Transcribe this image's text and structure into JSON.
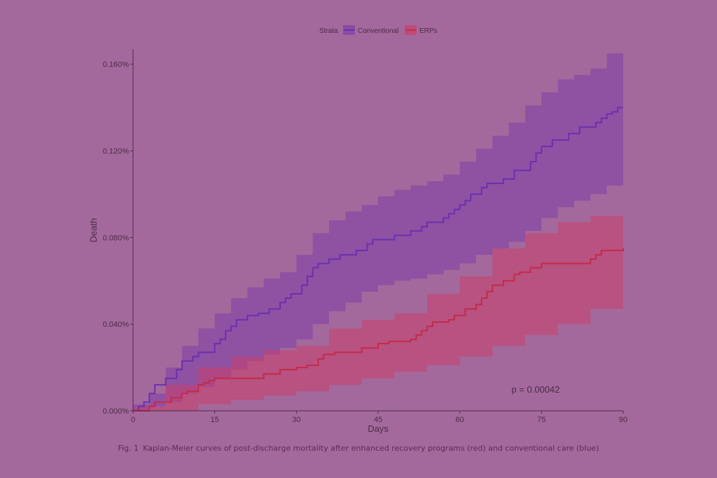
{
  "chart_data": {
    "type": "line",
    "xlabel": "Days",
    "ylabel": "Death",
    "xlim": [
      0,
      90
    ],
    "ylim": [
      0,
      0.00167
    ],
    "x_ticks": [
      0,
      15,
      30,
      45,
      60,
      75,
      90
    ],
    "y_ticks": [
      0.0,
      0.0004,
      0.0008,
      0.0012,
      0.0016
    ],
    "y_tick_labels": [
      "0.000%",
      "0.040%",
      "0.080%",
      "0.120%",
      "0.160%"
    ],
    "grid": false,
    "legend_title": "Strata",
    "legend_position": "top",
    "annotation": "p = 0.00042",
    "series": [
      {
        "name": "Conventional",
        "color": "#6a30b0",
        "band_color": "#7d3ea8",
        "steps": [
          [
            0,
            0.0
          ],
          [
            1,
            2e-05
          ],
          [
            2,
            4e-05
          ],
          [
            3,
            8e-05
          ],
          [
            4,
            0.00012
          ],
          [
            6,
            0.00015
          ],
          [
            8,
            0.00019
          ],
          [
            9,
            0.00023
          ],
          [
            11,
            0.00025
          ],
          [
            12,
            0.00027
          ],
          [
            15,
            0.00031
          ],
          [
            16,
            0.00033
          ],
          [
            17,
            0.00037
          ],
          [
            18,
            0.00039
          ],
          [
            19,
            0.00042
          ],
          [
            21,
            0.00044
          ],
          [
            23,
            0.00045
          ],
          [
            25,
            0.00047
          ],
          [
            27,
            0.0005
          ],
          [
            28,
            0.00052
          ],
          [
            29,
            0.00054
          ],
          [
            31,
            0.00058
          ],
          [
            32,
            0.00062
          ],
          [
            33,
            0.00066
          ],
          [
            34,
            0.00068
          ],
          [
            36,
            0.0007
          ],
          [
            38,
            0.00072
          ],
          [
            41,
            0.00074
          ],
          [
            43,
            0.00077
          ],
          [
            44,
            0.00079
          ],
          [
            48,
            0.00081
          ],
          [
            51,
            0.00083
          ],
          [
            53,
            0.00085
          ],
          [
            54,
            0.00087
          ],
          [
            57,
            0.00089
          ],
          [
            58,
            0.00091
          ],
          [
            59,
            0.00093
          ],
          [
            60,
            0.00095
          ],
          [
            61,
            0.00097
          ],
          [
            62,
            0.001
          ],
          [
            64,
            0.00103
          ],
          [
            65,
            0.00105
          ],
          [
            68,
            0.00107
          ],
          [
            70,
            0.00111
          ],
          [
            73,
            0.00115
          ],
          [
            74,
            0.00119
          ],
          [
            75,
            0.00122
          ],
          [
            77,
            0.00125
          ],
          [
            80,
            0.00128
          ],
          [
            82,
            0.00131
          ],
          [
            85,
            0.00133
          ],
          [
            86,
            0.00135
          ],
          [
            87,
            0.00137
          ],
          [
            88,
            0.00138
          ],
          [
            89,
            0.0014
          ],
          [
            90,
            0.0014
          ]
        ],
        "lower": [
          [
            0,
            0.0
          ],
          [
            3,
            2e-05
          ],
          [
            6,
            4e-05
          ],
          [
            9,
            8e-05
          ],
          [
            12,
            0.00011
          ],
          [
            15,
            0.00015
          ],
          [
            18,
            0.00019
          ],
          [
            21,
            0.00023
          ],
          [
            24,
            0.00026
          ],
          [
            27,
            0.00029
          ],
          [
            30,
            0.00033
          ],
          [
            33,
            0.0004
          ],
          [
            36,
            0.00046
          ],
          [
            39,
            0.0005
          ],
          [
            42,
            0.00055
          ],
          [
            45,
            0.00058
          ],
          [
            48,
            0.0006
          ],
          [
            51,
            0.00061
          ],
          [
            54,
            0.00063
          ],
          [
            57,
            0.00065
          ],
          [
            60,
            0.00068
          ],
          [
            63,
            0.00072
          ],
          [
            66,
            0.00075
          ],
          [
            69,
            0.00078
          ],
          [
            72,
            0.00083
          ],
          [
            75,
            0.00089
          ],
          [
            78,
            0.00094
          ],
          [
            81,
            0.00097
          ],
          [
            84,
            0.001
          ],
          [
            87,
            0.00104
          ],
          [
            90,
            0.00112
          ]
        ],
        "upper": [
          [
            0,
            3e-05
          ],
          [
            3,
            8e-05
          ],
          [
            6,
            0.0002
          ],
          [
            9,
            0.0003
          ],
          [
            12,
            0.00038
          ],
          [
            15,
            0.00045
          ],
          [
            18,
            0.00052
          ],
          [
            21,
            0.00057
          ],
          [
            24,
            0.00061
          ],
          [
            27,
            0.00064
          ],
          [
            30,
            0.00072
          ],
          [
            33,
            0.00082
          ],
          [
            36,
            0.00088
          ],
          [
            39,
            0.00092
          ],
          [
            42,
            0.00095
          ],
          [
            45,
            0.00099
          ],
          [
            48,
            0.00102
          ],
          [
            51,
            0.00104
          ],
          [
            54,
            0.00106
          ],
          [
            57,
            0.00109
          ],
          [
            60,
            0.00115
          ],
          [
            63,
            0.00121
          ],
          [
            66,
            0.00127
          ],
          [
            69,
            0.00133
          ],
          [
            72,
            0.00141
          ],
          [
            75,
            0.00147
          ],
          [
            78,
            0.00153
          ],
          [
            81,
            0.00155
          ],
          [
            84,
            0.00158
          ],
          [
            87,
            0.00165
          ],
          [
            90,
            0.00167
          ]
        ]
      },
      {
        "name": "ERPs",
        "color": "#c42a4a",
        "band_color": "#c8406a",
        "steps": [
          [
            0,
            0.0
          ],
          [
            3,
            2e-05
          ],
          [
            4,
            4e-05
          ],
          [
            7,
            6e-05
          ],
          [
            9,
            8e-05
          ],
          [
            10,
            9e-05
          ],
          [
            12,
            0.00012
          ],
          [
            13,
            0.00013
          ],
          [
            14,
            0.00014
          ],
          [
            15,
            0.00015
          ],
          [
            19,
            0.00015
          ],
          [
            24,
            0.00017
          ],
          [
            27,
            0.00019
          ],
          [
            30,
            0.0002
          ],
          [
            32,
            0.00021
          ],
          [
            34,
            0.00024
          ],
          [
            35,
            0.00026
          ],
          [
            37,
            0.00027
          ],
          [
            42,
            0.00029
          ],
          [
            45,
            0.00031
          ],
          [
            47,
            0.00032
          ],
          [
            51,
            0.00033
          ],
          [
            52,
            0.00035
          ],
          [
            53,
            0.00037
          ],
          [
            54,
            0.00039
          ],
          [
            55,
            0.00041
          ],
          [
            58,
            0.00042
          ],
          [
            59,
            0.00044
          ],
          [
            61,
            0.00047
          ],
          [
            63,
            0.00049
          ],
          [
            64,
            0.00052
          ],
          [
            65,
            0.00055
          ],
          [
            66,
            0.00058
          ],
          [
            68,
            0.0006
          ],
          [
            70,
            0.00063
          ],
          [
            71,
            0.00064
          ],
          [
            73,
            0.00066
          ],
          [
            75,
            0.00068
          ],
          [
            80,
            0.00068
          ],
          [
            84,
            0.0007
          ],
          [
            85,
            0.00072
          ],
          [
            86,
            0.00074
          ],
          [
            90,
            0.00075
          ]
        ],
        "lower": [
          [
            0,
            0.0
          ],
          [
            6,
            0.0
          ],
          [
            12,
            3e-05
          ],
          [
            18,
            5e-05
          ],
          [
            24,
            7e-05
          ],
          [
            30,
            9e-05
          ],
          [
            36,
            0.00012
          ],
          [
            42,
            0.00015
          ],
          [
            48,
            0.00018
          ],
          [
            54,
            0.00021
          ],
          [
            60,
            0.00025
          ],
          [
            66,
            0.0003
          ],
          [
            72,
            0.00035
          ],
          [
            78,
            0.0004
          ],
          [
            84,
            0.00047
          ],
          [
            90,
            0.00054
          ]
        ],
        "upper": [
          [
            0,
            2e-05
          ],
          [
            6,
            0.00012
          ],
          [
            12,
            0.0002
          ],
          [
            18,
            0.00025
          ],
          [
            24,
            0.00028
          ],
          [
            30,
            0.0003
          ],
          [
            36,
            0.00038
          ],
          [
            42,
            0.00042
          ],
          [
            48,
            0.00045
          ],
          [
            54,
            0.00054
          ],
          [
            60,
            0.00062
          ],
          [
            66,
            0.00075
          ],
          [
            72,
            0.00082
          ],
          [
            78,
            0.00087
          ],
          [
            84,
            0.0009
          ],
          [
            90,
            0.00095
          ]
        ]
      }
    ]
  },
  "caption": {
    "label": "Fig. 1",
    "text": "Kaplan-Meier curves of post-discharge mortality after enhanced recovery programs (red) and conventional care (blue)"
  },
  "colors": {
    "background": "#a4699c",
    "axis": "#4a2a48",
    "text": "#4a2a48"
  }
}
